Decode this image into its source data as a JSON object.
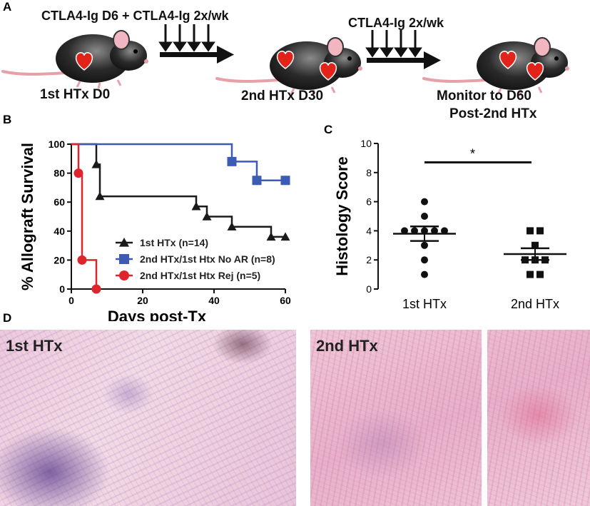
{
  "panel_a": {
    "letter": "A",
    "treatment_1": "CTLA4-Ig D6 + CTLA4-Ig 2x/wk",
    "treatment_2": "CTLA4-Ig 2x/wk",
    "caption_1": "1st HTx D0",
    "caption_2": "2nd HTx D30",
    "caption_3_line1": "Monitor to D60",
    "caption_3_line2": "Post-2nd HTx",
    "colors": {
      "mouse_body": "#2b2b2b",
      "heart": "#e2231a",
      "tail": "#e8a0a8"
    }
  },
  "panel_b": {
    "letter": "B",
    "legend_position": "lower-right"
  },
  "panel_c": {
    "letter": "C",
    "significance": "*"
  },
  "panel_d": {
    "letter": "D",
    "label_left": "1st HTx",
    "label_right": "2nd HTx"
  },
  "chart_data": [
    {
      "type": "line",
      "xlabel": "Days post-Tx",
      "ylabel": "% Allograft Survival",
      "xlim": [
        0,
        60
      ],
      "ylim": [
        0,
        100
      ],
      "xticks": [
        0,
        20,
        40,
        60
      ],
      "yticks": [
        0,
        20,
        40,
        60,
        80,
        100
      ],
      "step": true,
      "series": [
        {
          "name": "1st HTx (n=14)",
          "color": "#1a1a1a",
          "marker": "triangle",
          "x": [
            0,
            7,
            8,
            35,
            38,
            45,
            56,
            60
          ],
          "y": [
            100,
            86,
            64,
            57,
            50,
            43,
            36,
            36
          ]
        },
        {
          "name": "2nd HTx/1st Htx No AR (n=8)",
          "color": "#3b5bb5",
          "marker": "square",
          "x": [
            0,
            45,
            52,
            60
          ],
          "y": [
            100,
            88,
            75,
            75
          ]
        },
        {
          "name": "2nd HTx/1st Htx Rej (n=5)",
          "color": "#e0242b",
          "marker": "circle",
          "x": [
            0,
            2,
            3,
            7
          ],
          "y": [
            100,
            80,
            20,
            0
          ]
        }
      ]
    },
    {
      "type": "scatter",
      "ylabel": "Histology Score",
      "ylim": [
        0,
        10
      ],
      "yticks": [
        0,
        2,
        4,
        6,
        8,
        10
      ],
      "categories": [
        "1st HTx",
        "2nd HTx"
      ],
      "series": [
        {
          "name": "1st HTx",
          "marker": "circle",
          "color": "#111111",
          "values": [
            6,
            5,
            4,
            4,
            4,
            4,
            4,
            3,
            2,
            1
          ],
          "mean": 3.8,
          "sem": 0.5
        },
        {
          "name": "2nd HTx",
          "marker": "square",
          "color": "#111111",
          "values": [
            4,
            4,
            3,
            2,
            2,
            2,
            1,
            1
          ],
          "mean": 2.4,
          "sem": 0.4
        }
      ]
    }
  ]
}
